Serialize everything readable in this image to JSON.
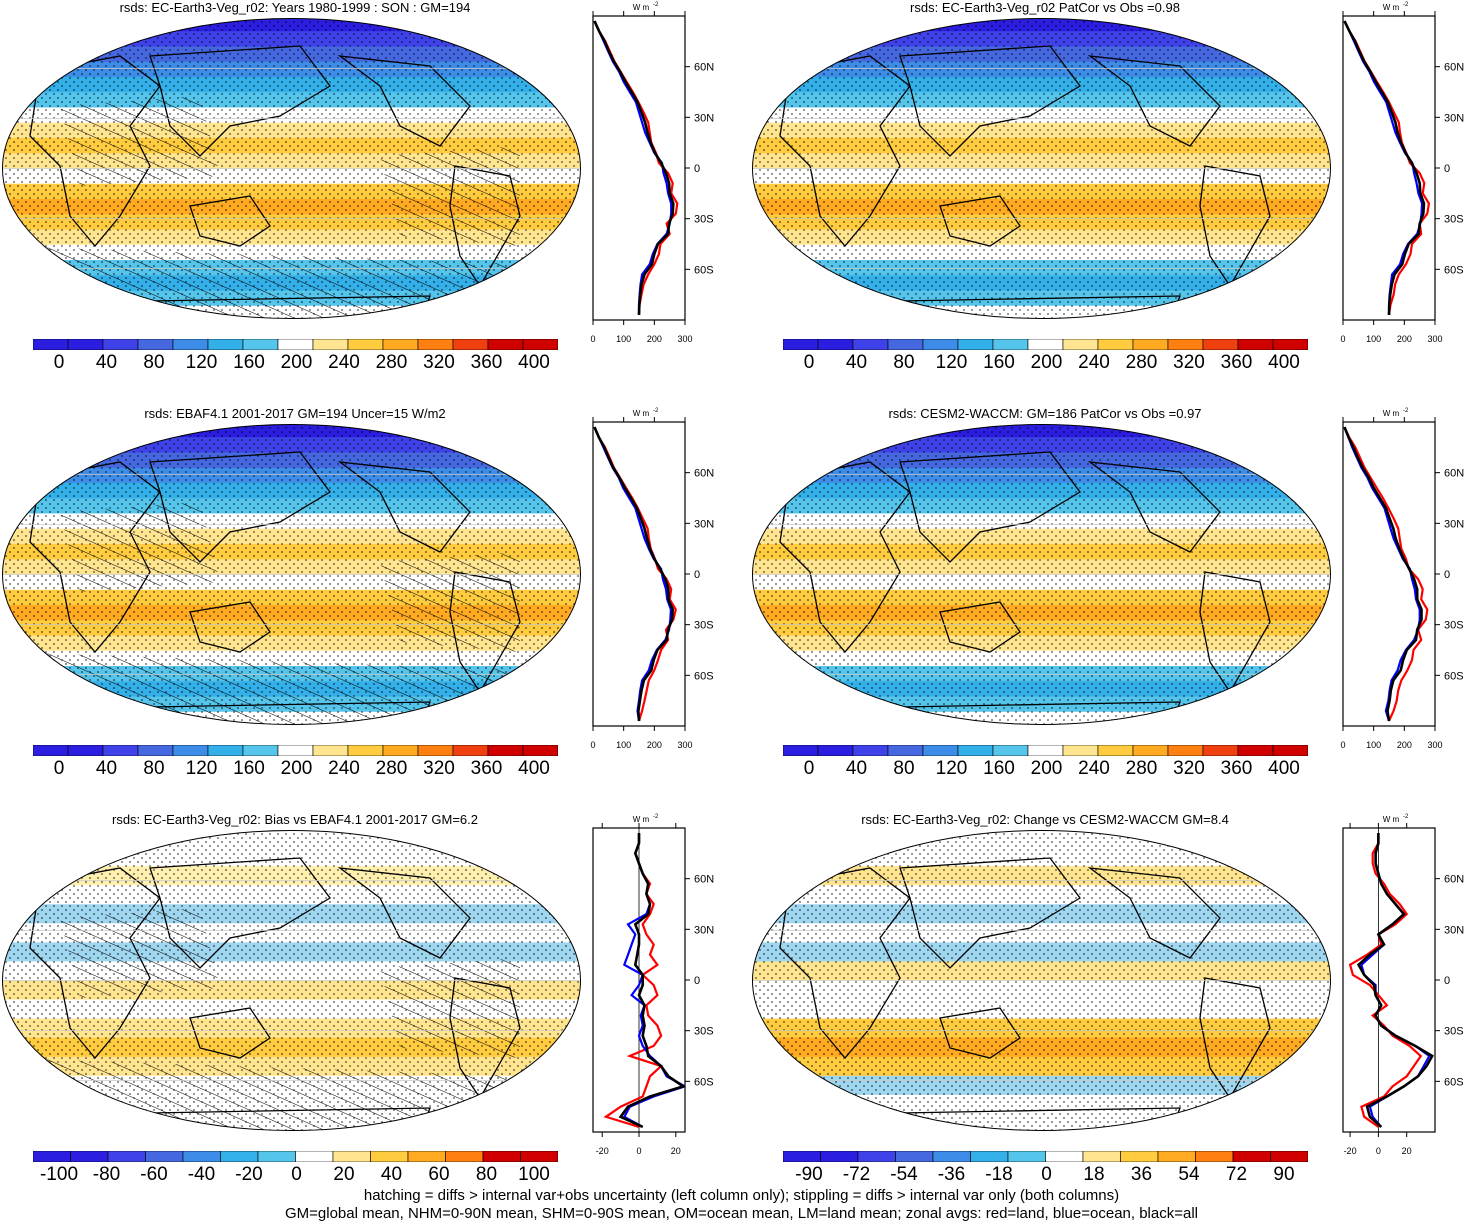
{
  "panels": [
    {
      "id": "p1",
      "title": "rsds: EC-Earth3-Veg_r02: Years 1980-1999 : SON : GM=194",
      "cbar": "abs",
      "zonal": "abs",
      "hatch": true,
      "profiles": {
        "land": [
          150,
          152,
          158,
          165,
          180,
          200,
          215,
          220,
          250,
          240,
          270,
          275,
          255,
          260,
          245,
          215,
          205,
          190,
          185,
          180,
          165,
          148,
          130,
          110,
          90,
          70,
          55,
          40,
          20,
          5
        ],
        "ocean": [
          150,
          150,
          152,
          155,
          160,
          185,
          195,
          210,
          240,
          250,
          255,
          255,
          245,
          240,
          230,
          225,
          200,
          185,
          170,
          160,
          150,
          140,
          120,
          100,
          85,
          65,
          50,
          35,
          20,
          5
        ],
        "all": [
          150,
          151,
          154,
          158,
          168,
          192,
          200,
          212,
          245,
          248,
          260,
          262,
          250,
          248,
          238,
          222,
          202,
          188,
          178,
          170,
          158,
          145,
          126,
          106,
          88,
          68,
          52,
          38,
          20,
          5
        ]
      }
    },
    {
      "id": "p2",
      "title": "rsds: EC-Earth3-Veg_r02 PatCor vs Obs =0.98",
      "cbar": "abs",
      "zonal": "abs",
      "hatch": false,
      "profiles": {
        "land": [
          150,
          155,
          165,
          170,
          182,
          205,
          220,
          225,
          255,
          250,
          275,
          280,
          260,
          265,
          250,
          218,
          206,
          192,
          186,
          182,
          166,
          150,
          131,
          111,
          91,
          71,
          56,
          41,
          21,
          5
        ],
        "ocean": [
          150,
          150,
          152,
          156,
          160,
          186,
          196,
          212,
          242,
          252,
          256,
          258,
          246,
          240,
          232,
          226,
          202,
          186,
          171,
          161,
          151,
          141,
          121,
          101,
          86,
          66,
          51,
          36,
          21,
          5
        ],
        "all": [
          150,
          151,
          154,
          159,
          168,
          193,
          202,
          214,
          247,
          250,
          262,
          264,
          252,
          250,
          240,
          224,
          204,
          189,
          178,
          171,
          159,
          146,
          127,
          107,
          89,
          69,
          53,
          39,
          21,
          5
        ]
      }
    },
    {
      "id": "p3",
      "title": "rsds: EBAF4.1 2001-2017 GM=194 Uncer=15 W/m2",
      "cbar": "abs",
      "zonal": "abs",
      "hatch": true,
      "profiles": {
        "land": [
          150,
          160,
          168,
          175,
          182,
          200,
          212,
          222,
          245,
          238,
          262,
          270,
          250,
          255,
          240,
          212,
          202,
          188,
          182,
          178,
          162,
          146,
          128,
          108,
          88,
          68,
          54,
          39,
          19,
          5
        ],
        "ocean": [
          150,
          145,
          150,
          154,
          160,
          182,
          192,
          208,
          236,
          248,
          252,
          254,
          242,
          238,
          228,
          222,
          198,
          182,
          168,
          158,
          148,
          138,
          118,
          98,
          84,
          64,
          49,
          34,
          19,
          5
        ],
        "all": [
          150,
          148,
          153,
          158,
          166,
          190,
          198,
          210,
          240,
          245,
          258,
          260,
          246,
          246,
          236,
          219,
          200,
          186,
          176,
          168,
          156,
          143,
          124,
          104,
          86,
          66,
          51,
          37,
          19,
          5
        ]
      }
    },
    {
      "id": "p4",
      "title": "rsds: CESM2-WACCM: GM=186 PatCor vs Obs =0.97",
      "cbar": "abs",
      "zonal": "abs",
      "hatch": false,
      "profiles": {
        "land": [
          150,
          165,
          175,
          180,
          190,
          210,
          225,
          230,
          255,
          245,
          270,
          275,
          255,
          260,
          245,
          215,
          205,
          190,
          185,
          180,
          165,
          148,
          130,
          110,
          90,
          70,
          55,
          40,
          20,
          5
        ],
        "ocean": [
          150,
          140,
          148,
          152,
          158,
          178,
          188,
          205,
          232,
          245,
          250,
          250,
          238,
          234,
          225,
          218,
          195,
          180,
          165,
          155,
          145,
          135,
          115,
          95,
          80,
          60,
          45,
          30,
          18,
          5
        ],
        "all": [
          150,
          145,
          152,
          156,
          164,
          188,
          196,
          208,
          238,
          242,
          256,
          256,
          242,
          242,
          232,
          216,
          198,
          184,
          172,
          164,
          152,
          140,
          120,
          100,
          84,
          64,
          48,
          34,
          18,
          5
        ]
      }
    },
    {
      "id": "p5",
      "title": "rsds: EC-Earth3-Veg_r02: Bias vs EBAF4.1 2001-2017  GM=6.2",
      "cbar": "bias",
      "zonal": "bias",
      "hatch": true,
      "profiles": {
        "land": [
          0,
          -18,
          -10,
          2,
          4,
          6,
          12,
          -5,
          8,
          12,
          10,
          5,
          4,
          10,
          8,
          2,
          10,
          6,
          8,
          4,
          2,
          6,
          8,
          4,
          6,
          2,
          0,
          -2,
          0,
          0
        ],
        "ocean": [
          2,
          -8,
          -5,
          8,
          25,
          15,
          12,
          6,
          2,
          0,
          2,
          1,
          3,
          -4,
          0,
          2,
          -8,
          -6,
          -4,
          -2,
          -6,
          4,
          6,
          4,
          5,
          2,
          0,
          -2,
          0,
          0
        ],
        "all": [
          2,
          -10,
          -6,
          6,
          24,
          16,
          12,
          5,
          4,
          2,
          3,
          2,
          3,
          0,
          2,
          2,
          -2,
          -1,
          0,
          0,
          -2,
          5,
          6,
          4,
          5,
          2,
          0,
          -2,
          0,
          0
        ]
      }
    },
    {
      "id": "p6",
      "title": "rsds: EC-Earth3-Veg_r02: Change vs CESM2-WACCM GM=8.4",
      "cbar": "chg",
      "zonal": "chg",
      "hatch": false,
      "profiles": {
        "land": [
          0,
          -10,
          -12,
          4,
          10,
          20,
          25,
          30,
          22,
          10,
          4,
          -4,
          6,
          0,
          -6,
          -18,
          -20,
          -8,
          2,
          0,
          12,
          20,
          15,
          8,
          4,
          -2,
          -4,
          -4,
          0,
          0
        ],
        "ocean": [
          2,
          -4,
          -6,
          6,
          18,
          28,
          32,
          36,
          26,
          12,
          2,
          -2,
          2,
          -2,
          -2,
          -10,
          -12,
          -4,
          4,
          0,
          10,
          18,
          12,
          6,
          2,
          0,
          -2,
          -2,
          0,
          0
        ],
        "all": [
          2,
          -6,
          -8,
          6,
          18,
          28,
          34,
          38,
          26,
          12,
          2,
          -2,
          2,
          -2,
          -3,
          -10,
          -14,
          -6,
          4,
          0,
          10,
          18,
          12,
          6,
          2,
          0,
          -2,
          -2,
          0,
          0
        ]
      }
    }
  ],
  "colorbars": {
    "abs": {
      "labels": [
        "0",
        "40",
        "80",
        "120",
        "160",
        "200",
        "240",
        "280",
        "320",
        "360",
        "400"
      ]
    },
    "bias": {
      "labels": [
        "-100",
        "-80",
        "-60",
        "-40",
        "-20",
        "0",
        "20",
        "40",
        "60",
        "80",
        "100"
      ]
    },
    "chg": {
      "labels": [
        "-90",
        "-72",
        "-54",
        "-36",
        "-18",
        "0",
        "18",
        "36",
        "54",
        "72",
        "90"
      ]
    }
  },
  "zonal_axes": {
    "unit": "W m",
    "unit_sup": "-2",
    "lat_labels": [
      "60N",
      "30N",
      "0",
      "30S",
      "60S"
    ],
    "abs": {
      "xlim": [
        0,
        300
      ],
      "ticks": [
        "0",
        "100",
        "200",
        "300"
      ]
    },
    "bias": {
      "xlim": [
        -25,
        25
      ],
      "ticks": [
        "-20",
        "0",
        "20"
      ]
    },
    "chg": {
      "xlim": [
        -25,
        40
      ],
      "ticks": [
        "-20",
        "0",
        "20"
      ]
    }
  },
  "colors": {
    "land": "#ff0000",
    "ocean": "#0000ff",
    "all": "#000000",
    "cbar_13": [
      "#2b1ee0",
      "#3f42e8",
      "#4568e0",
      "#3d8de8",
      "#33b0ea",
      "#55c5ec",
      "#ffffff",
      "#ffe590",
      "#ffcc40",
      "#ffaa20",
      "#ff8010",
      "#f04010",
      "#d00000"
    ],
    "cbar_12": [
      "#2b1ee0",
      "#3f42e8",
      "#4568e0",
      "#3d8de8",
      "#33b0ea",
      "#55c5ec",
      "#ffffff",
      "#ffe590",
      "#ffcc40",
      "#ffaa20",
      "#ff8010",
      "#d00000"
    ]
  },
  "footer": {
    "line1": "hatching = diffs > internal var+obs uncertainty (left column only); stippling = diffs > internal var only (both columns)",
    "line2": "GM=global mean, NHM=0-90N mean, SHM=0-90S mean, OM=ocean mean, LM=land mean; zonal avgs: red=land, blue=ocean, black=all"
  }
}
